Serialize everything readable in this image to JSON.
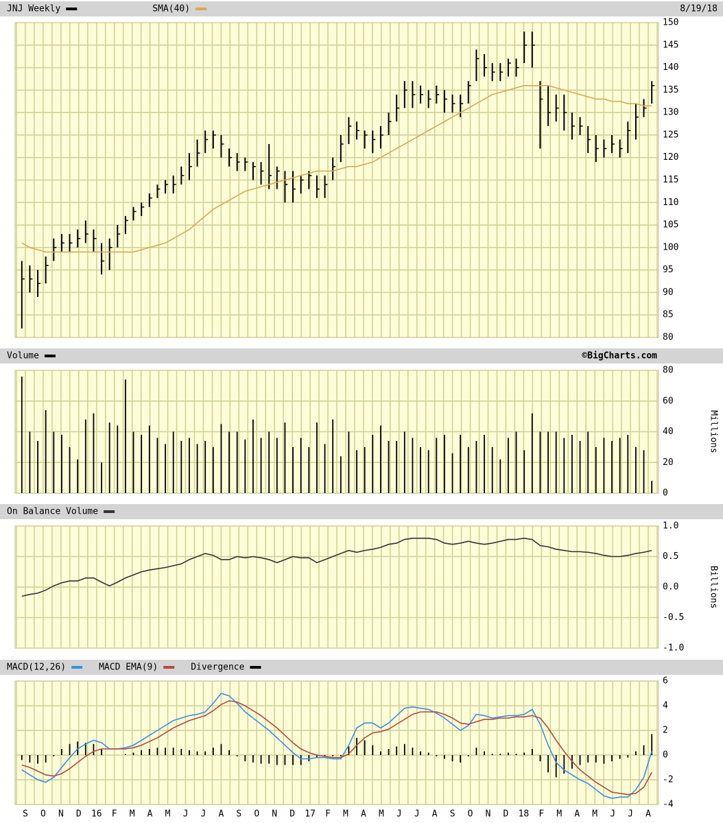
{
  "chart_data": [
    {
      "type": "ohlc",
      "date": "8/19/18",
      "ylim": [
        80,
        150
      ],
      "yticks": [
        80,
        85,
        90,
        95,
        100,
        105,
        110,
        115,
        120,
        125,
        130,
        135,
        140,
        145,
        150
      ],
      "grid": true,
      "series": [
        {
          "name": "JNJ Weekly",
          "color": "#000000",
          "high": [
            97,
            96,
            95,
            98,
            102,
            103,
            103,
            104,
            106,
            104,
            101,
            102,
            105,
            107,
            109,
            110,
            112,
            114,
            115,
            116,
            118,
            121,
            124,
            126,
            126,
            125,
            122,
            121,
            120,
            119,
            119,
            123,
            118,
            117,
            117,
            116,
            117,
            116,
            116,
            120,
            125,
            129,
            128,
            126,
            126,
            127,
            130,
            134,
            137,
            137,
            136,
            135,
            136,
            135,
            134,
            134,
            137,
            144,
            143,
            141,
            141,
            142,
            142,
            148,
            148,
            137,
            136,
            134,
            134,
            130,
            129,
            127,
            125,
            124,
            125,
            124,
            128,
            132,
            133,
            137
          ],
          "low": [
            82,
            90,
            89,
            92,
            97,
            99,
            99,
            100,
            101,
            99,
            94,
            95,
            100,
            103,
            106,
            107,
            109,
            111,
            112,
            112,
            114,
            115,
            118,
            121,
            122,
            120,
            118,
            117,
            117,
            115,
            114,
            113,
            113,
            110,
            110,
            112,
            113,
            111,
            111,
            115,
            119,
            123,
            124,
            122,
            121,
            122,
            125,
            128,
            131,
            131,
            132,
            131,
            132,
            130,
            130,
            129,
            132,
            137,
            138,
            137,
            137,
            138,
            138,
            141,
            140,
            122,
            127,
            128,
            126,
            124,
            125,
            121,
            119,
            120,
            121,
            120,
            121,
            124,
            129,
            132
          ],
          "close": [
            93,
            93,
            92,
            96,
            100,
            101,
            101,
            102,
            103,
            102,
            97,
            100,
            103,
            106,
            108,
            109,
            111,
            113,
            114,
            114,
            116,
            118,
            121,
            124,
            125,
            123,
            120,
            119,
            119,
            118,
            117,
            116,
            117,
            114,
            113,
            115,
            116,
            113,
            114,
            118,
            123,
            127,
            126,
            125,
            124,
            125,
            128,
            131,
            135,
            134,
            134,
            133,
            134,
            133,
            132,
            132,
            136,
            142,
            140,
            139,
            139,
            141,
            140,
            145,
            145,
            133,
            130,
            131,
            130,
            127,
            127,
            124,
            122,
            122,
            123,
            122,
            126,
            129,
            131,
            136
          ]
        },
        {
          "name": "SMA(40)",
          "color": "#d9a955",
          "type": "line",
          "values": [
            101,
            100,
            99.5,
            99,
            99,
            99,
            99,
            99,
            99,
            99,
            99,
            99,
            99,
            99,
            99,
            99.5,
            100,
            100.5,
            101,
            102,
            103,
            104,
            105.5,
            107,
            108.5,
            109.5,
            110.5,
            111.5,
            112.5,
            113,
            113.5,
            114,
            114.5,
            115,
            115.5,
            116,
            116.5,
            117,
            117,
            117,
            117.5,
            118,
            118,
            118.5,
            119,
            120,
            121,
            122,
            123,
            124,
            125,
            126,
            127,
            128,
            129,
            130,
            131,
            132,
            133,
            134,
            134.5,
            135,
            135.5,
            136,
            136,
            136,
            136,
            135.5,
            135,
            134.5,
            134,
            133.5,
            133,
            133,
            132.5,
            132.5,
            132,
            132,
            131.5,
            131.5
          ]
        }
      ]
    },
    {
      "type": "bar",
      "source": "©BigCharts.com",
      "ylabel": "Millions",
      "ylim": [
        0,
        80
      ],
      "yticks": [
        0,
        20,
        40,
        60,
        80
      ],
      "grid": true,
      "series": [
        {
          "name": "Volume",
          "color": "#000000",
          "values": [
            76,
            40,
            34,
            54,
            40,
            38,
            30,
            22,
            48,
            52,
            20,
            46,
            44,
            74,
            40,
            38,
            44,
            36,
            32,
            40,
            34,
            36,
            32,
            34,
            30,
            45,
            40,
            40,
            35,
            48,
            36,
            40,
            36,
            46,
            30,
            36,
            30,
            46,
            32,
            48,
            24,
            40,
            28,
            30,
            38,
            44,
            34,
            34,
            40,
            36,
            30,
            28,
            36,
            38,
            26,
            38,
            30,
            34,
            38,
            30,
            22,
            36,
            40,
            28,
            52,
            40,
            40,
            40,
            36,
            38,
            34,
            40,
            30,
            36,
            34,
            36,
            38,
            30,
            28,
            8
          ]
        }
      ]
    },
    {
      "type": "line",
      "ylabel": "Billions",
      "ylim": [
        -1,
        1
      ],
      "yticks": [
        {
          "value": -1,
          "label": "-1.0"
        },
        -0.5,
        {
          "value": 0,
          "label": "0.0"
        },
        0.5,
        {
          "value": 1,
          "label": "1.0"
        }
      ],
      "grid": true,
      "series": [
        {
          "name": "On Balance Volume",
          "color": "#333333",
          "values": [
            -0.15,
            -0.12,
            -0.1,
            -0.05,
            0.02,
            0.07,
            0.1,
            0.1,
            0.15,
            0.15,
            0.08,
            0.02,
            0.08,
            0.15,
            0.2,
            0.25,
            0.28,
            0.3,
            0.32,
            0.35,
            0.38,
            0.45,
            0.5,
            0.55,
            0.52,
            0.45,
            0.45,
            0.5,
            0.48,
            0.5,
            0.48,
            0.45,
            0.4,
            0.45,
            0.5,
            0.48,
            0.48,
            0.4,
            0.45,
            0.5,
            0.55,
            0.6,
            0.57,
            0.6,
            0.62,
            0.65,
            0.7,
            0.72,
            0.78,
            0.8,
            0.8,
            0.8,
            0.78,
            0.72,
            0.7,
            0.72,
            0.75,
            0.72,
            0.7,
            0.72,
            0.75,
            0.78,
            0.78,
            0.8,
            0.78,
            0.68,
            0.66,
            0.62,
            0.6,
            0.58,
            0.58,
            0.57,
            0.55,
            0.52,
            0.5,
            0.5,
            0.52,
            0.55,
            0.57,
            0.6
          ]
        }
      ]
    },
    {
      "type": "line",
      "ylim": [
        -4,
        6
      ],
      "yticks": [
        -4,
        -2,
        0,
        2,
        4,
        6
      ],
      "grid": true,
      "x_labels": [
        "S",
        "O",
        "N",
        "D",
        "16",
        "F",
        "M",
        "A",
        "M",
        "J",
        "J",
        "A",
        "S",
        "O",
        "N",
        "D",
        "17",
        "F",
        "M",
        "A",
        "M",
        "J",
        "J",
        "A",
        "S",
        "O",
        "N",
        "D",
        "18",
        "F",
        "M",
        "A",
        "M",
        "J",
        "J",
        "A"
      ],
      "series": [
        {
          "name": "MACD(12,26)",
          "color": "#3a8ee6",
          "values": [
            -1.2,
            -1.6,
            -2.0,
            -2.2,
            -1.8,
            -1.0,
            -0.2,
            0.5,
            0.9,
            1.2,
            1.0,
            0.5,
            0.5,
            0.6,
            0.8,
            1.2,
            1.6,
            2.0,
            2.4,
            2.8,
            3.0,
            3.2,
            3.3,
            3.5,
            4.2,
            5.0,
            4.8,
            4.2,
            3.5,
            3.0,
            2.5,
            2.0,
            1.4,
            0.8,
            0.2,
            -0.3,
            -0.3,
            -0.2,
            -0.2,
            -0.3,
            -0.3,
            0.8,
            2.2,
            2.6,
            2.6,
            2.2,
            2.6,
            3.2,
            3.8,
            3.9,
            3.8,
            3.7,
            3.4,
            3.0,
            2.5,
            2.0,
            2.4,
            3.3,
            3.2,
            3.0,
            3.1,
            3.2,
            3.2,
            3.3,
            3.7,
            2.5,
            0.8,
            -0.6,
            -1.2,
            -1.6,
            -2.0,
            -2.3,
            -2.8,
            -3.3,
            -3.5,
            -3.4,
            -3.4,
            -2.8,
            -1.8,
            0.3
          ]
        },
        {
          "name": "MACD EMA(9)",
          "color": "#b5493c",
          "values": [
            -0.8,
            -1.0,
            -1.3,
            -1.6,
            -1.7,
            -1.5,
            -1.1,
            -0.6,
            -0.1,
            0.3,
            0.5,
            0.5,
            0.5,
            0.5,
            0.6,
            0.8,
            1.1,
            1.4,
            1.8,
            2.2,
            2.5,
            2.8,
            3.0,
            3.2,
            3.6,
            4.1,
            4.4,
            4.3,
            4.0,
            3.6,
            3.2,
            2.7,
            2.2,
            1.6,
            1.0,
            0.5,
            0.2,
            0.0,
            -0.1,
            -0.2,
            -0.2,
            0.1,
            0.8,
            1.4,
            1.8,
            1.9,
            2.1,
            2.5,
            2.9,
            3.3,
            3.5,
            3.5,
            3.5,
            3.3,
            3.0,
            2.6,
            2.5,
            2.7,
            2.9,
            2.9,
            3.0,
            3.0,
            3.1,
            3.1,
            3.2,
            3.0,
            2.2,
            1.2,
            0.3,
            -0.5,
            -1.2,
            -1.7,
            -2.2,
            -2.6,
            -3.0,
            -3.1,
            -3.2,
            -3.1,
            -2.6,
            -1.4
          ]
        },
        {
          "name": "Divergence",
          "color": "#000000",
          "type": "bar",
          "values": [
            -0.4,
            -0.6,
            -0.7,
            -0.6,
            -0.1,
            0.5,
            0.9,
            1.1,
            1.0,
            0.9,
            0.5,
            0.0,
            0.0,
            0.1,
            0.2,
            0.4,
            0.5,
            0.6,
            0.6,
            0.6,
            0.5,
            0.4,
            0.3,
            0.3,
            0.6,
            0.9,
            0.4,
            -0.1,
            -0.5,
            -0.6,
            -0.7,
            -0.7,
            -0.8,
            -0.8,
            -0.8,
            -0.8,
            -0.5,
            -0.2,
            -0.1,
            -0.1,
            -0.1,
            0.7,
            1.4,
            1.2,
            0.8,
            0.3,
            0.5,
            0.7,
            0.9,
            0.6,
            0.3,
            0.2,
            -0.1,
            -0.3,
            -0.5,
            -0.6,
            -0.1,
            0.6,
            0.3,
            0.1,
            0.1,
            0.2,
            0.1,
            0.2,
            0.5,
            -0.5,
            -1.4,
            -1.8,
            -1.5,
            -1.1,
            -0.8,
            -0.6,
            -0.6,
            -0.7,
            -0.5,
            -0.3,
            -0.2,
            0.3,
            0.8,
            1.7
          ]
        }
      ]
    }
  ]
}
